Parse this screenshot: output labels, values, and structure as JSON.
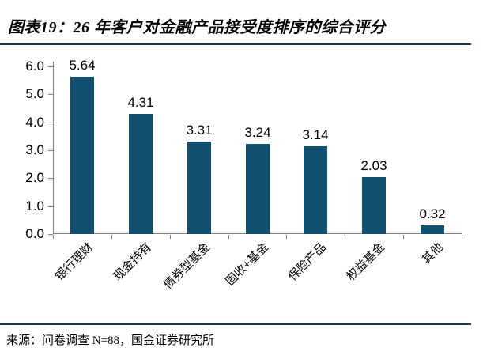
{
  "header": {
    "title": "图表19：26 年客户对金融产品接受度排序的综合评分"
  },
  "footer": {
    "source": "来源：问卷调查 N=88，国金证券研究所"
  },
  "colors": {
    "bar": "#11506F",
    "divider": "#17375E",
    "axis": "#808080",
    "label": "#000000",
    "background": "#FFFFFF"
  },
  "chart_data": {
    "type": "bar",
    "title": "26 年客户对金融产品接受度排序的综合评分",
    "categories": [
      "银行理财",
      "现金持有",
      "债券型基金",
      "固收+基金",
      "保险产品",
      "权益基金",
      "其他"
    ],
    "values": [
      5.64,
      4.31,
      3.31,
      3.24,
      3.14,
      2.03,
      0.32
    ],
    "value_labels": [
      "5.64",
      "4.31",
      "3.31",
      "3.24",
      "3.14",
      "2.03",
      "0.32"
    ],
    "y_tick_labels": [
      "0.0",
      "1.0",
      "2.0",
      "3.0",
      "4.0",
      "5.0",
      "6.0"
    ],
    "ylim": [
      0,
      6
    ],
    "xlabel": "",
    "ylabel": "",
    "grid": false,
    "legend": "none",
    "bar_color": "#11506F"
  }
}
